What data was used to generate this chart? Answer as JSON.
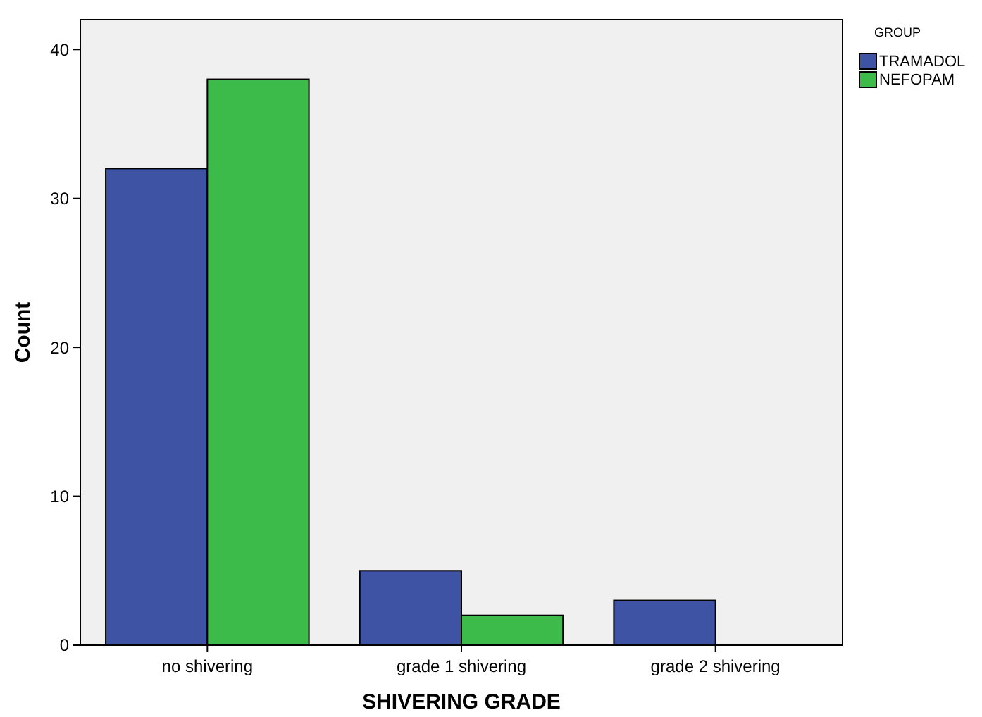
{
  "chart_data": {
    "type": "bar",
    "xlabel": "SHIVERING GRADE",
    "ylabel": "Count",
    "legend_title": "GROUP",
    "legend": "top right",
    "grid": false,
    "categories": [
      "no shivering",
      "grade 1 shivering",
      "grade 2 shivering"
    ],
    "series": [
      {
        "name": "TRAMADOL",
        "color": "#3e53a4",
        "values": [
          32,
          5,
          3
        ]
      },
      {
        "name": "NEFOPAM",
        "color": "#3dbb4a",
        "values": [
          38,
          2,
          0
        ]
      }
    ],
    "ylim": [
      0,
      42
    ],
    "yticks": [
      0,
      10,
      20,
      30,
      40
    ]
  }
}
